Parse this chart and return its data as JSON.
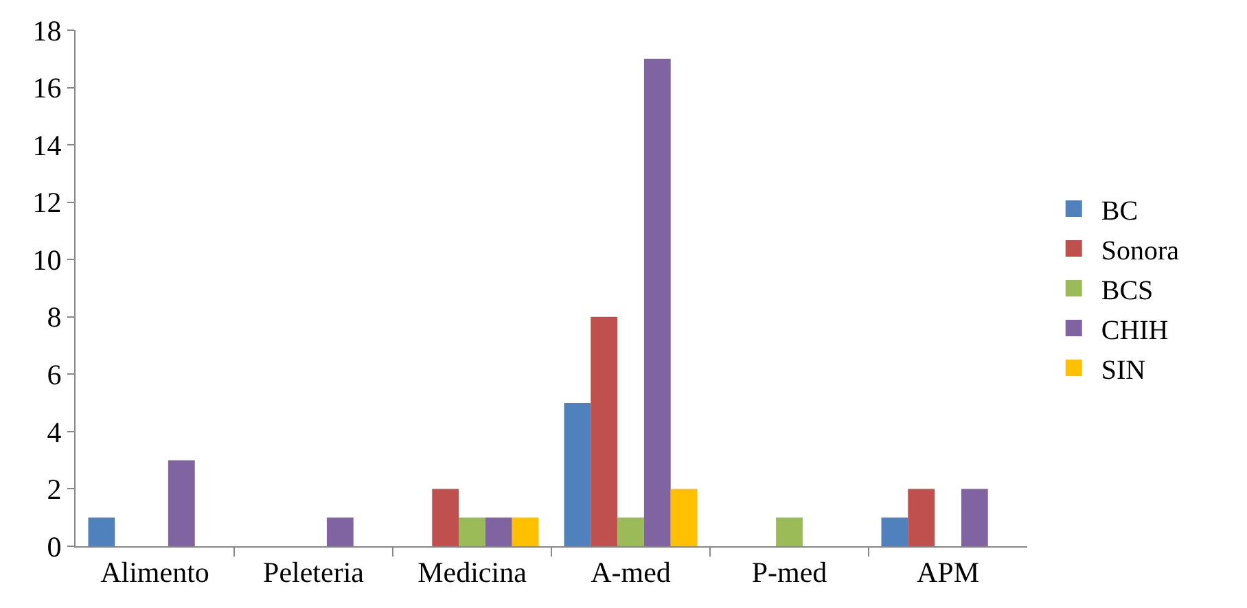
{
  "chart_data": {
    "type": "bar",
    "categories": [
      "Alimento",
      "Peleteria",
      "Medicina",
      "A-med",
      "P-med",
      "APM"
    ],
    "series": [
      {
        "name": "BC",
        "color": "#4f81bd",
        "values": [
          1,
          0,
          0,
          5,
          0,
          1
        ]
      },
      {
        "name": "Sonora",
        "color": "#c0504d",
        "values": [
          0,
          0,
          2,
          8,
          0,
          2
        ]
      },
      {
        "name": "BCS",
        "color": "#9bbb59",
        "values": [
          0,
          0,
          1,
          1,
          1,
          0
        ]
      },
      {
        "name": "CHIH",
        "color": "#8064a2",
        "values": [
          3,
          1,
          1,
          17,
          0,
          2
        ]
      },
      {
        "name": "SIN",
        "color": "#ffc000",
        "values": [
          0,
          0,
          1,
          2,
          0,
          0
        ]
      }
    ],
    "ylim": [
      0,
      18
    ],
    "yticks": [
      0,
      2,
      4,
      6,
      8,
      10,
      12,
      14,
      16,
      18
    ],
    "grid": false,
    "legend": "right"
  }
}
